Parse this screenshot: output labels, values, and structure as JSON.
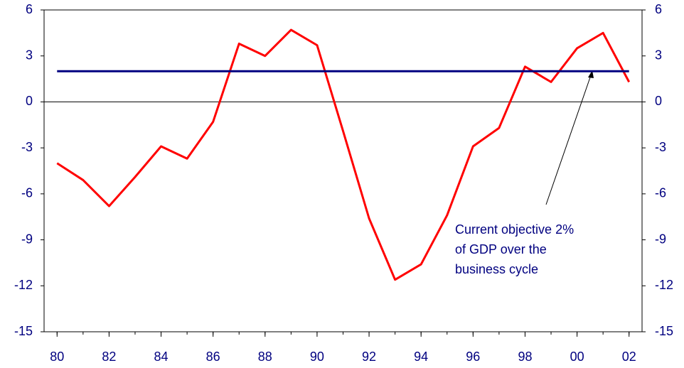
{
  "chart_data": {
    "type": "line",
    "x": [
      1980,
      1981,
      1982,
      1983,
      1984,
      1985,
      1986,
      1987,
      1988,
      1989,
      1990,
      1991,
      1992,
      1993,
      1994,
      1995,
      1996,
      1997,
      1998,
      1999,
      2000,
      2001,
      2002
    ],
    "series": [
      {
        "color": "#ff0000",
        "values": [
          -4.0,
          -5.1,
          -6.8,
          -4.9,
          -2.9,
          -3.7,
          -1.3,
          3.8,
          3.0,
          4.7,
          3.7,
          -1.9,
          -7.6,
          -11.6,
          -10.6,
          -7.4,
          -2.9,
          -1.7,
          2.3,
          1.3,
          3.5,
          4.5,
          1.3
        ]
      },
      {
        "color": "#000080",
        "values": [
          2,
          2,
          2,
          2,
          2,
          2,
          2,
          2,
          2,
          2,
          2,
          2,
          2,
          2,
          2,
          2,
          2,
          2,
          2,
          2,
          2,
          2,
          2
        ]
      }
    ],
    "xlim": [
      1979.5,
      2002.5
    ],
    "xticks": [
      {
        "value": 1980,
        "label": "80"
      },
      {
        "value": 1982,
        "label": "82"
      },
      {
        "value": 1984,
        "label": "84"
      },
      {
        "value": 1986,
        "label": "86"
      },
      {
        "value": 1988,
        "label": "88"
      },
      {
        "value": 1990,
        "label": "90"
      },
      {
        "value": 1992,
        "label": "92"
      },
      {
        "value": 1994,
        "label": "94"
      },
      {
        "value": 1996,
        "label": "96"
      },
      {
        "value": 1998,
        "label": "98"
      },
      {
        "value": 2000,
        "label": "00"
      },
      {
        "value": 2002,
        "label": "02"
      }
    ],
    "ylim": [
      -15,
      6
    ],
    "yticks": [
      6,
      3,
      0,
      -3,
      -6,
      -9,
      -12,
      -15
    ],
    "y2lim": [
      -15,
      6
    ],
    "y2ticks": [
      6,
      3,
      0,
      -3,
      -6,
      -9,
      -12,
      -15
    ],
    "annotation": [
      "Current objective 2%",
      "of GDP over the",
      "business cycle"
    ]
  }
}
